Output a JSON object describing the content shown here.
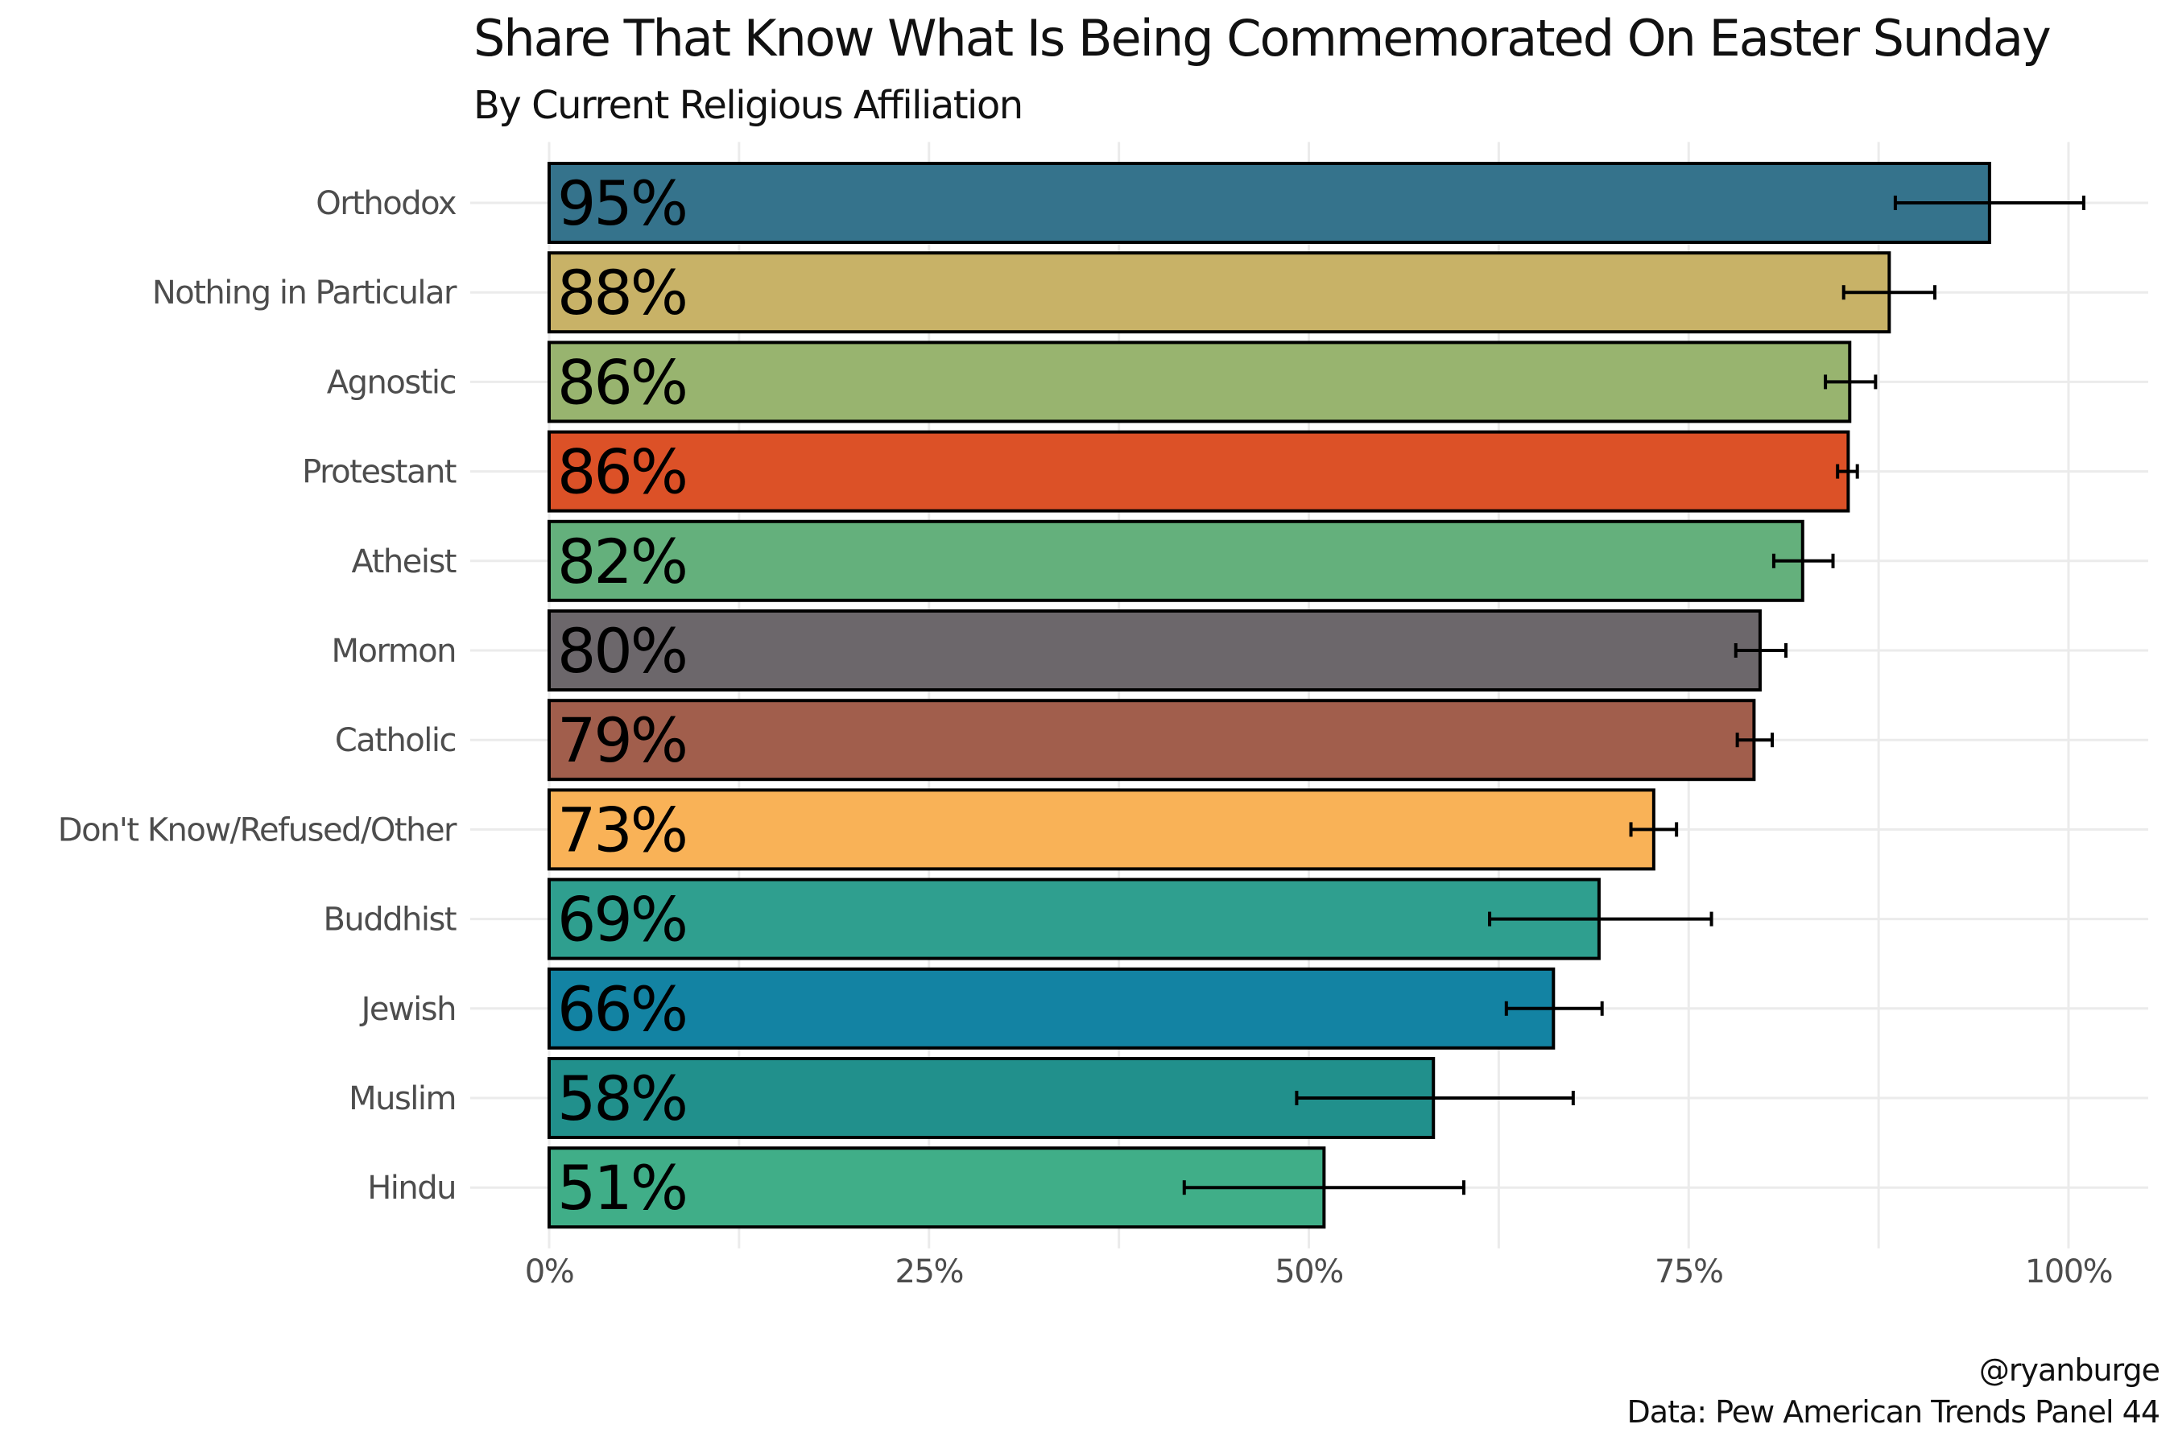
{
  "chart_data": {
    "type": "bar",
    "orientation": "horizontal",
    "title": "Share That Know What Is Being Commemorated On Easter Sunday",
    "subtitle": "By Current Religious Affiliation",
    "categories": [
      "Orthodox",
      "Nothing in Particular",
      "Agnostic",
      "Protestant",
      "Atheist",
      "Mormon",
      "Catholic",
      "Don't Know/Refused/Other",
      "Buddhist",
      "Jewish",
      "Muslim",
      "Hindu"
    ],
    "values": [
      0.948,
      0.882,
      0.856,
      0.855,
      0.825,
      0.797,
      0.793,
      0.727,
      0.691,
      0.661,
      0.582,
      0.51
    ],
    "labels": [
      "95%",
      "88%",
      "86%",
      "86%",
      "82%",
      "80%",
      "79%",
      "73%",
      "69%",
      "66%",
      "58%",
      "51%"
    ],
    "error_low": [
      0.886,
      0.852,
      0.84,
      0.848,
      0.806,
      0.781,
      0.782,
      0.712,
      0.619,
      0.63,
      0.492,
      0.418
    ],
    "error_high": [
      1.01,
      0.912,
      0.873,
      0.861,
      0.845,
      0.814,
      0.805,
      0.742,
      0.765,
      0.693,
      0.674,
      0.602
    ],
    "colors": [
      "#35738C",
      "#C8B267",
      "#98B46F",
      "#DC5127",
      "#64B07C",
      "#6C676B",
      "#A15E4C",
      "#F9B257",
      "#2F9F8F",
      "#1383A3",
      "#21908C",
      "#40AE88"
    ],
    "xticks": [
      "0%",
      "25%",
      "50%",
      "75%",
      "100%"
    ],
    "xlim": [
      -0.05,
      1.05
    ],
    "grid": true,
    "legend": "none"
  },
  "caption": {
    "handle": "@ryanburge",
    "source": "Data: Pew American Trends Panel 44"
  }
}
